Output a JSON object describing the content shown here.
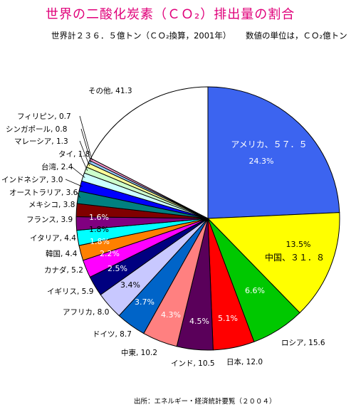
{
  "header": {
    "title": "世界の二酸化炭素（ＣＯ₂）排出量の割合",
    "subtitle_left": "世界計２３６．５億トン（ＣＯ₂換算，2001年）",
    "subtitle_right": "数値の単位は，ＣＯ₂億トン"
  },
  "footer": {
    "source": "出所：エネルギー・経済統計要覧（２００４）"
  },
  "chart_data": {
    "type": "pie",
    "total": 236.5,
    "slices": [
      {
        "label": "アメリカ、５７．５",
        "value": 57.5,
        "percent": "24.3%",
        "color": "#3c64f0",
        "label_style": "inside"
      },
      {
        "label": "中国、３１．８",
        "value": 31.8,
        "percent": "13.5%",
        "color": "#ffff00",
        "label_style": "inside"
      },
      {
        "label": "ロシア, 15.6",
        "value": 15.6,
        "percent": "6.6%",
        "color": "#00c800",
        "label_style": "outside"
      },
      {
        "label": "日本, 12.0",
        "value": 12.0,
        "percent": "5.1%",
        "color": "#ff0000",
        "label_style": "outside"
      },
      {
        "label": "インド, 10.5",
        "value": 10.5,
        "percent": "4.5%",
        "color": "#5a005a",
        "label_style": "outside"
      },
      {
        "label": "中東, 10.2",
        "value": 10.2,
        "percent": "4.3%",
        "color": "#ff8080",
        "label_style": "outside"
      },
      {
        "label": "ドイツ, 8.7",
        "value": 8.7,
        "percent": "3.7%",
        "color": "#0064c8",
        "label_style": "outside"
      },
      {
        "label": "アフリカ, 8.0",
        "value": 8.0,
        "percent": "3.4%",
        "color": "#c8c8ff",
        "label_style": "outside"
      },
      {
        "label": "イギリス, 5.9",
        "value": 5.9,
        "percent": "2.5%",
        "color": "#000080",
        "label_style": "outside"
      },
      {
        "label": "カナダ, 5.2",
        "value": 5.2,
        "percent": "2.2%",
        "color": "#ff00ff",
        "label_style": "outside"
      },
      {
        "label": "韓国, 4.4",
        "value": 4.4,
        "percent": "1.8%",
        "color": "#ff8000",
        "label_style": "outside"
      },
      {
        "label": "イタリア, 4.4",
        "value": 4.4,
        "percent": "1.8%",
        "color": "#00ffff",
        "label_style": "outside"
      },
      {
        "label": "フランス, 3.9",
        "value": 3.9,
        "percent": "1.6%",
        "color": "#800080",
        "label_style": "outside"
      },
      {
        "label": "メキシコ, 3.8",
        "value": 3.8,
        "percent": "",
        "color": "#800000",
        "label_style": "outside"
      },
      {
        "label": "オーストラリア, 3.6",
        "value": 3.6,
        "percent": "",
        "color": "#008080",
        "label_style": "outside"
      },
      {
        "label": "インドネシア, 3.0",
        "value": 3.0,
        "percent": "",
        "color": "#0000ff",
        "label_style": "outside"
      },
      {
        "label": "台湾, 2.4",
        "value": 2.4,
        "percent": "",
        "color": "#ccffff",
        "label_style": "outside"
      },
      {
        "label": "タイ, 1.8",
        "value": 1.8,
        "percent": "",
        "color": "#ccffcc",
        "label_style": "outside"
      },
      {
        "label": "マレーシア, 1.3",
        "value": 1.3,
        "percent": "",
        "color": "#ffff99",
        "label_style": "outside"
      },
      {
        "label": "シンガポール, 0.8",
        "value": 0.8,
        "percent": "",
        "color": "#99ccff",
        "label_style": "outside"
      },
      {
        "label": "フィリピン, 0.7",
        "value": 0.7,
        "percent": "",
        "color": "#ff99cc",
        "label_style": "outside"
      },
      {
        "label": "その他, 41.3",
        "value": 41.3,
        "percent": "",
        "color": "#ffffff",
        "label_style": "outside"
      }
    ]
  }
}
